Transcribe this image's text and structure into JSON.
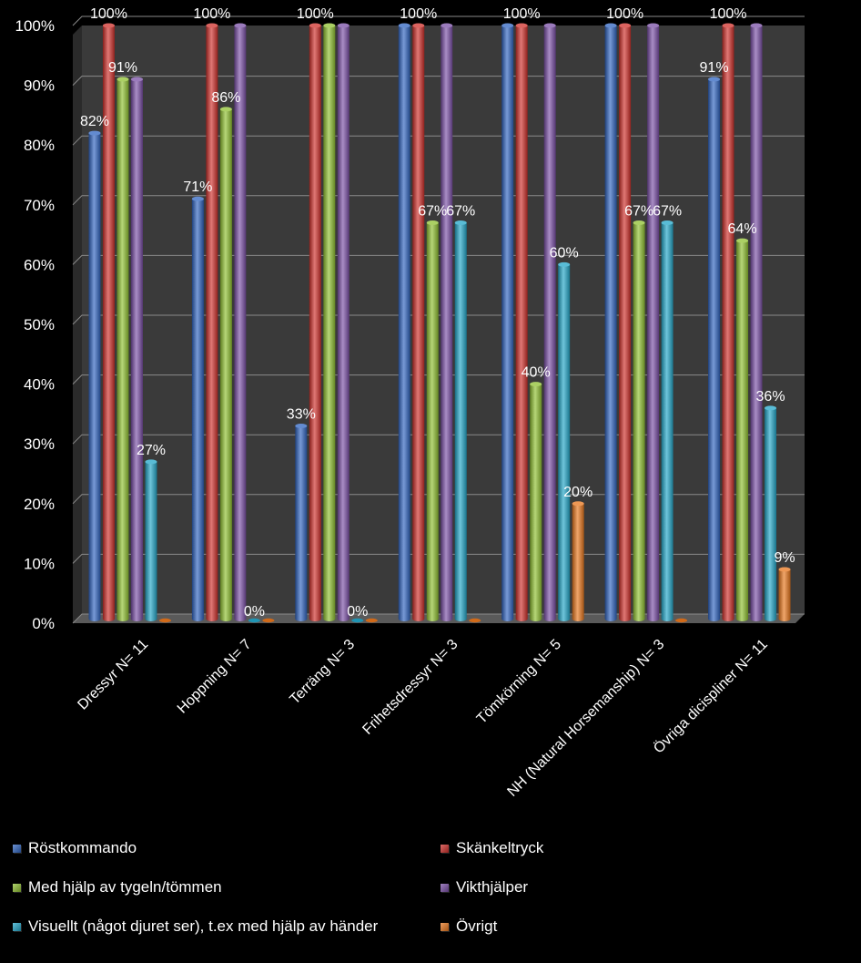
{
  "chart_data": {
    "type": "bar",
    "title": "",
    "xlabel": "",
    "ylabel": "",
    "ylim": [
      0,
      100
    ],
    "yticks": [
      "0%",
      "10%",
      "20%",
      "30%",
      "40%",
      "50%",
      "60%",
      "70%",
      "80%",
      "90%",
      "100%"
    ],
    "grid": true,
    "legend_position": "bottom",
    "categories": [
      "Dressyr N= 11",
      "Hoppning  N= 7",
      "Terräng N= 3",
      "Frihetsdressyr N= 3",
      "Tömkörning N= 5",
      "NH (Natural Horsemanship) N= 3",
      "Övriga dicispliner N= 11"
    ],
    "series": [
      {
        "name": "Röstkommando",
        "color": "#2f64c0",
        "values": [
          82,
          71,
          33,
          100,
          100,
          100,
          91
        ],
        "labels": [
          "82%",
          "71%",
          "33%",
          "",
          "",
          "",
          "91%"
        ]
      },
      {
        "name": "Skänkeltryck",
        "color": "#cf2f2a",
        "values": [
          100,
          100,
          100,
          100,
          100,
          100,
          100
        ],
        "labels": [
          "100%",
          "100%",
          "100%",
          "100%",
          "100%",
          "100%",
          "100%"
        ]
      },
      {
        "name": "Med hjälp av tygeln/tömmen",
        "color": "#8fc030",
        "values": [
          91,
          86,
          100,
          67,
          40,
          67,
          64
        ],
        "labels": [
          "91%",
          "86%",
          "",
          "67%",
          "40%",
          "67%",
          "64%"
        ]
      },
      {
        "name": "Vikthjälper",
        "color": "#7a4fa6",
        "values": [
          91,
          100,
          100,
          100,
          100,
          100,
          100
        ],
        "labels": [
          "",
          "",
          "",
          "",
          "",
          "",
          ""
        ]
      },
      {
        "name": "Visuellt (något djuret ser), t.ex med hjälp av händer",
        "color": "#22a6c8",
        "values": [
          27,
          0,
          0,
          67,
          60,
          67,
          36
        ],
        "labels": [
          "27%",
          "0%",
          "0%",
          "67%",
          "60%",
          "67%",
          "36%"
        ]
      },
      {
        "name": "Övrigt",
        "color": "#e8761c",
        "values": [
          0,
          0,
          0,
          0,
          20,
          0,
          9
        ],
        "labels": [
          "",
          "",
          "",
          "",
          "20%",
          "",
          "9%"
        ]
      }
    ]
  }
}
